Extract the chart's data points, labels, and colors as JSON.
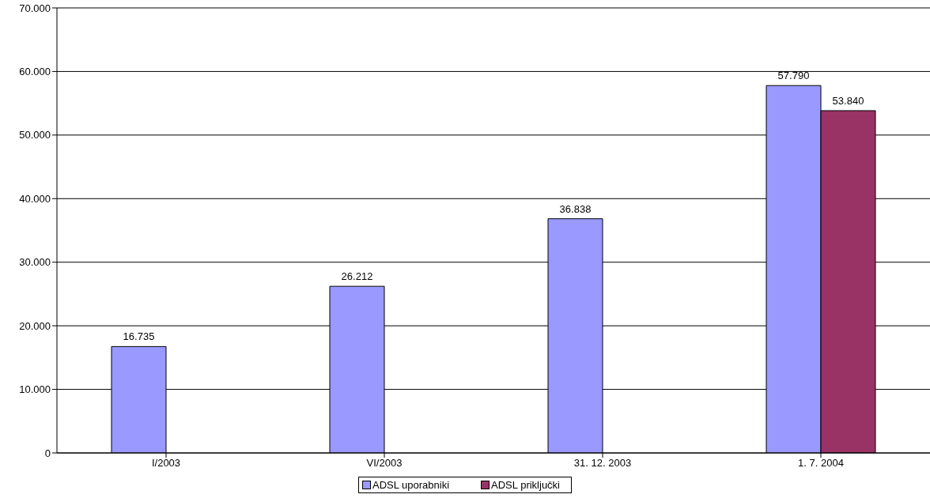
{
  "chart_data": {
    "type": "bar",
    "categories": [
      "I/2003",
      "VI/2003",
      "31. 12. 2003",
      "1. 7. 2004"
    ],
    "series": [
      {
        "name": "ADSL uporabniki",
        "color": "#9999ff",
        "values": [
          16735,
          26212,
          36838,
          57790
        ],
        "value_labels": [
          "16.735",
          "26.212",
          "36.838",
          "57.790"
        ]
      },
      {
        "name": "ADSL priključki",
        "color": "#993366",
        "values": [
          null,
          null,
          null,
          53840
        ],
        "value_labels": [
          null,
          null,
          null,
          "53.840"
        ]
      }
    ],
    "ylim": [
      0,
      70000
    ],
    "yticks": [
      {
        "value": 0,
        "label": "0"
      },
      {
        "value": 10000,
        "label": "10.000"
      },
      {
        "value": 20000,
        "label": "20.000"
      },
      {
        "value": 30000,
        "label": "30.000"
      },
      {
        "value": 40000,
        "label": "40.000"
      },
      {
        "value": 50000,
        "label": "50.000"
      },
      {
        "value": 60000,
        "label": "60.000"
      },
      {
        "value": 70000,
        "label": "70.000"
      }
    ],
    "grid": "y",
    "legend": "bottom"
  }
}
